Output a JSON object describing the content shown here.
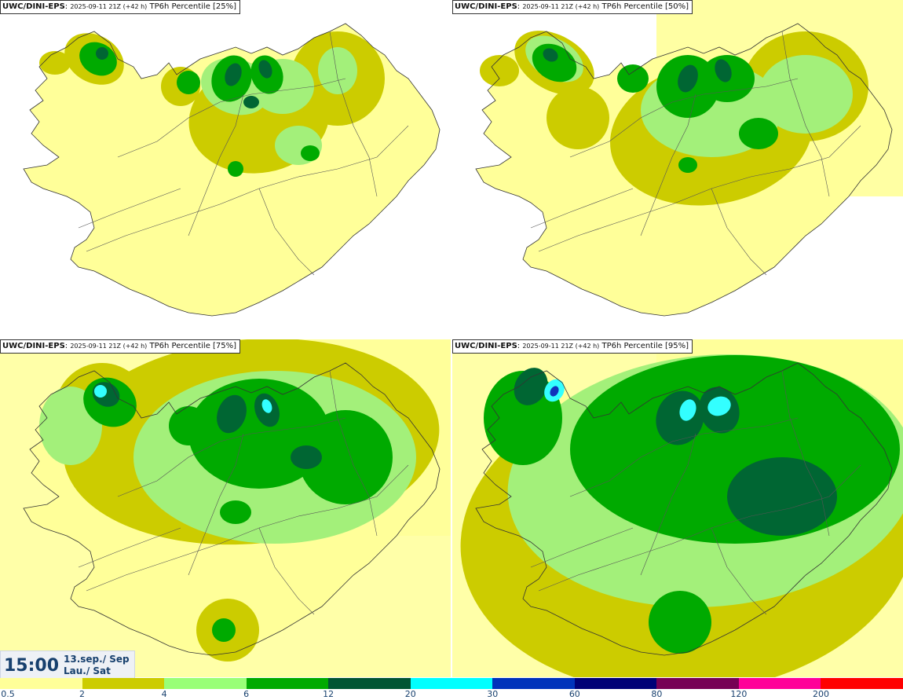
{
  "panels": [
    {
      "model": "UWC/DINI-EPS",
      "run": "2025-09-11 21Z (+42 h)",
      "field": "TP6h Percentile [25%]",
      "level": 0
    },
    {
      "model": "UWC/DINI-EPS",
      "run": "2025-09-11 21Z (+42 h)",
      "field": "TP6h Percentile [50%]",
      "level": 1
    },
    {
      "model": "UWC/DINI-EPS",
      "run": "2025-09-11 21Z (+42 h)",
      "field": "TP6h Percentile [75%]",
      "level": 2
    },
    {
      "model": "UWC/DINI-EPS",
      "run": "2025-09-11 21Z (+42 h)",
      "field": "TP6h Percentile [95%]",
      "level": 3
    }
  ],
  "valid_time": {
    "time": "15:00",
    "date": "13.sep./ Sep",
    "day": "Lau./ Sat"
  },
  "colorbar": {
    "labels": [
      "0.5",
      "2",
      "4",
      "6",
      "12",
      "20",
      "30",
      "60",
      "80",
      "120",
      "200"
    ],
    "colors": [
      "#ffff99",
      "#cccc00",
      "#99ff77",
      "#00aa00",
      "#005533",
      "#00ffff",
      "#0033bb",
      "#000077",
      "#770055",
      "#ff0099",
      "#ff0000"
    ]
  },
  "palette": {
    "yellow": "#ffff99",
    "olive": "#cccc00",
    "lightgreen": "#a3f07a",
    "green": "#00aa00",
    "darkgreen": "#006633",
    "cyan": "#33ffff",
    "blue": "#1133bb"
  }
}
